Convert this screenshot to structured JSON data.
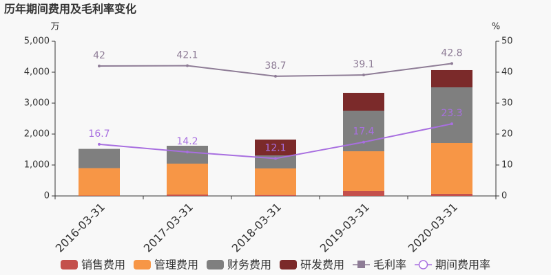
{
  "chart_data": {
    "type": "bar",
    "title": "历年期间费用及毛利率变化",
    "y_unit": "万",
    "y2_unit": "%",
    "categories": [
      "2016-03-31",
      "2017-03-31",
      "2018-03-31",
      "2019-03-31",
      "2020-03-31"
    ],
    "series": [
      {
        "name": "销售费用",
        "color": "#c4504c",
        "values": [
          10,
          44,
          30,
          156,
          67
        ]
      },
      {
        "name": "管理费用",
        "color": "#f79646",
        "values": [
          889,
          1000,
          859,
          1288,
          1644
        ]
      },
      {
        "name": "财务费用",
        "color": "#7f7f7f",
        "values": [
          622,
          578,
          422,
          1312,
          1800
        ]
      },
      {
        "name": "研发费用",
        "color": "#7b2a2a",
        "values": [
          0,
          0,
          511,
          577,
          556
        ]
      },
      {
        "name": "毛利率",
        "type": "line",
        "axis": "y2",
        "color": "#8e7c96",
        "marker": "square",
        "values": [
          42,
          42.1,
          38.7,
          39.1,
          42.8
        ]
      },
      {
        "name": "期间费用率",
        "type": "line",
        "axis": "y2",
        "color": "#a86fe0",
        "marker": "circle",
        "values": [
          16.7,
          14.2,
          12.1,
          17.4,
          23.3
        ]
      }
    ],
    "ylim": [
      0,
      5000
    ],
    "yticks": [
      0,
      {
        "value": 1000,
        "label": "1,000"
      },
      {
        "value": 2000,
        "label": "2,000"
      },
      {
        "value": 3000,
        "label": "3,000"
      },
      {
        "value": 4000,
        "label": "4,000"
      },
      {
        "value": 5000,
        "label": "5,000"
      }
    ],
    "y2lim": [
      0,
      50
    ],
    "y2ticks": [
      0,
      10,
      20,
      30,
      40,
      50
    ]
  }
}
